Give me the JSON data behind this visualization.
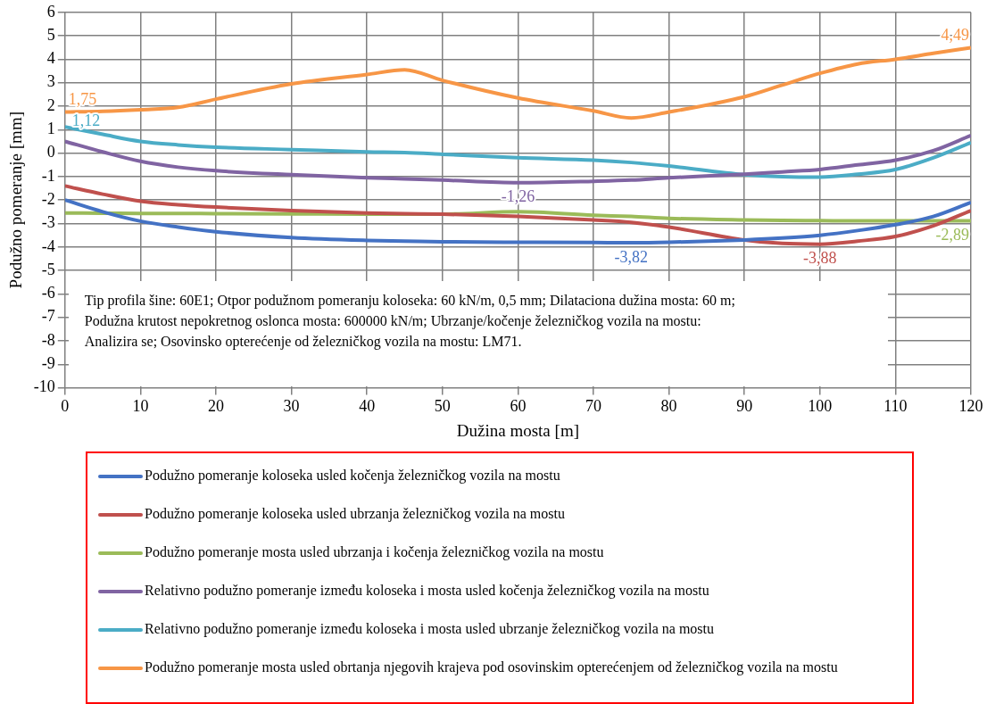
{
  "chart_data": {
    "type": "line",
    "xlabel": "Dužina mosta [m]",
    "ylabel": "Podužno pomeranje [mm]",
    "xlim": [
      0,
      120
    ],
    "xticks": [
      0,
      10,
      20,
      30,
      40,
      50,
      60,
      70,
      80,
      90,
      100,
      110,
      120
    ],
    "ylim": [
      -10,
      6
    ],
    "yticks": [
      -10,
      -9,
      -8,
      -7,
      -6,
      -5,
      -4,
      -3,
      -2,
      -1,
      0,
      1,
      2,
      3,
      4,
      5,
      6
    ],
    "grid": true,
    "legend": "bottom",
    "marker": "none",
    "line_style": "solid",
    "x": [
      0,
      5,
      10,
      15,
      20,
      30,
      40,
      45,
      50,
      60,
      70,
      75,
      80,
      90,
      95,
      100,
      105,
      110,
      115,
      120
    ],
    "annotations": [
      "Tip profila šine: 60E1; Otpor podužnom pomeranju koloseka: 60 kN/m, 0,5 mm; Dilataciona dužina mosta: 60 m; Podužna krutost nepokretnog oslonca mosta: 600000 kN/m; Ubrzanje/kočenje železničkog vozila na mostu: Analizira se; Osovinsko opterećenje od železničkog vozila na mostu: LM71."
    ],
    "series": [
      {
        "name": "Podužno pomeranje koloseka usled kočenja železničkog vozila na mostu",
        "color": "#4472c4",
        "values": [
          -2.0,
          -2.5,
          -2.9,
          -3.15,
          -3.35,
          -3.6,
          -3.72,
          -3.75,
          -3.78,
          -3.8,
          -3.81,
          -3.82,
          -3.8,
          -3.7,
          -3.62,
          -3.5,
          -3.3,
          -3.05,
          -2.7,
          -2.1
        ],
        "value_labels": [
          null,
          null,
          null,
          null,
          null,
          null,
          null,
          null,
          null,
          null,
          null,
          "-3,82",
          null,
          null,
          null,
          null,
          null,
          null,
          null,
          null
        ]
      },
      {
        "name": "Podužno pomeranje koloseka usled ubrzanja železničkog vozila na mostu",
        "color": "#c0504d",
        "values": [
          -1.4,
          -1.75,
          -2.05,
          -2.2,
          -2.3,
          -2.45,
          -2.55,
          -2.58,
          -2.6,
          -2.7,
          -2.85,
          -2.95,
          -3.15,
          -3.7,
          -3.85,
          -3.88,
          -3.75,
          -3.55,
          -3.1,
          -2.45
        ],
        "value_labels": [
          null,
          null,
          null,
          null,
          null,
          null,
          null,
          null,
          null,
          null,
          null,
          null,
          null,
          null,
          null,
          "-3,88",
          null,
          null,
          null,
          null
        ]
      },
      {
        "name": "Podužno pomeranje mosta usled ubrzanja i kočenja železničkog vozila na mostu",
        "color": "#9bbb59",
        "values": [
          -2.55,
          -2.56,
          -2.57,
          -2.57,
          -2.58,
          -2.59,
          -2.6,
          -2.6,
          -2.6,
          -2.5,
          -2.65,
          -2.7,
          -2.78,
          -2.85,
          -2.87,
          -2.88,
          -2.89,
          -2.89,
          -2.89,
          -2.89
        ],
        "value_labels": [
          null,
          null,
          null,
          null,
          null,
          null,
          null,
          null,
          null,
          null,
          null,
          null,
          null,
          null,
          null,
          null,
          null,
          null,
          null,
          "-2,89"
        ]
      },
      {
        "name": "Relativno podužno pomeranje između koloseka i mosta usled kočenja železničkog vozila na mostu",
        "color": "#8064a2",
        "values": [
          0.5,
          0.05,
          -0.35,
          -0.6,
          -0.75,
          -0.92,
          -1.05,
          -1.1,
          -1.15,
          -1.26,
          -1.2,
          -1.15,
          -1.05,
          -0.9,
          -0.8,
          -0.7,
          -0.5,
          -0.3,
          0.1,
          0.75
        ],
        "value_labels": [
          null,
          null,
          null,
          null,
          null,
          null,
          null,
          null,
          null,
          "-1,26",
          null,
          null,
          null,
          null,
          null,
          null,
          null,
          null,
          null,
          null
        ]
      },
      {
        "name": "Relativno podužno pomeranje između koloseka i mosta usled ubrzanje železničkog vozila na mostu",
        "color": "#4bacc6",
        "values": [
          1.12,
          0.8,
          0.5,
          0.35,
          0.25,
          0.15,
          0.05,
          0.02,
          -0.05,
          -0.2,
          -0.3,
          -0.4,
          -0.55,
          -0.92,
          -1.0,
          -1.02,
          -0.9,
          -0.7,
          -0.2,
          0.45
        ],
        "value_labels": [
          "1,12",
          null,
          null,
          null,
          null,
          null,
          null,
          null,
          null,
          null,
          null,
          null,
          null,
          null,
          null,
          null,
          null,
          null,
          null,
          null
        ]
      },
      {
        "name": "Podužno pomeranje mosta usled obrtanja njegovih krajeva pod osovinskim opterećenjem od železničkog vozila na mostu",
        "color": "#f79646",
        "values": [
          1.75,
          1.78,
          1.85,
          1.95,
          2.3,
          2.95,
          3.35,
          3.55,
          3.1,
          2.35,
          1.8,
          1.5,
          1.75,
          2.4,
          2.9,
          3.4,
          3.8,
          4.0,
          4.25,
          4.49
        ],
        "value_labels": [
          "1,75",
          null,
          null,
          null,
          null,
          null,
          null,
          null,
          null,
          null,
          null,
          null,
          null,
          null,
          null,
          null,
          null,
          null,
          null,
          "4,49"
        ]
      }
    ]
  }
}
